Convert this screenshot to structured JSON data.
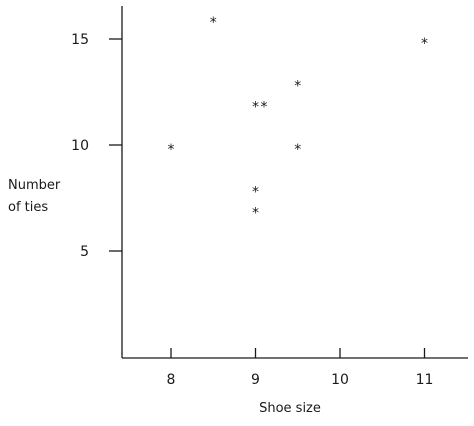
{
  "chart_data": {
    "type": "scatter",
    "xlabel": "Shoe size",
    "ylabel_lines": [
      "Number",
      "of ties"
    ],
    "xlim": [
      7.25,
      11.4
    ],
    "ylim": [
      0,
      16.2
    ],
    "x_ticks": [
      8,
      9,
      10,
      11
    ],
    "y_ticks": [
      5,
      10,
      15
    ],
    "marker": "*",
    "grid": false,
    "colors": {
      "ink": "#1a1a1a",
      "background": "#ffffff"
    },
    "points": [
      {
        "x": 8,
        "y": 10
      },
      {
        "x": 8.5,
        "y": 16
      },
      {
        "x": 9,
        "y": 12
      },
      {
        "x": 9.1,
        "y": 12
      },
      {
        "x": 9,
        "y": 8
      },
      {
        "x": 9,
        "y": 7
      },
      {
        "x": 9.5,
        "y": 13
      },
      {
        "x": 9.5,
        "y": 10
      },
      {
        "x": 11,
        "y": 15
      }
    ]
  }
}
